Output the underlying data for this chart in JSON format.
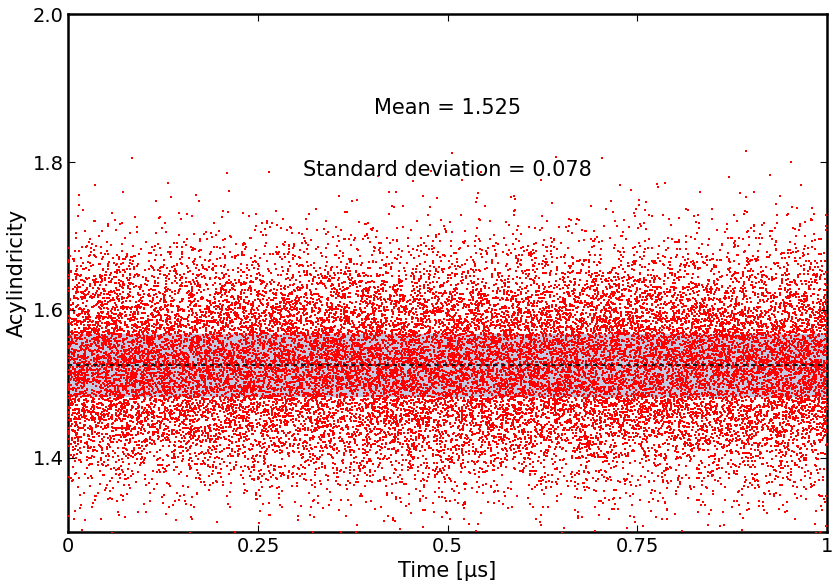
{
  "mean": 1.525,
  "std": 0.078,
  "xlim": [
    0,
    1
  ],
  "ylim": [
    1.3,
    2.0
  ],
  "xlabel": "Time [μs]",
  "ylabel": "Acylindricity",
  "xticks": [
    0,
    0.25,
    0.5,
    0.75,
    1
  ],
  "yticks": [
    1.4,
    1.6,
    1.8,
    2.0
  ],
  "n_points": 25000,
  "dot_color": "#ff0000",
  "dot_size": 2.5,
  "dot_alpha": 1.0,
  "band_color": "#b0b8d8",
  "band_alpha": 0.75,
  "band_half": 0.042,
  "dashed_line_color": "#111111",
  "annotation_mean": "Mean = 1.525",
  "annotation_std": "Standard deviation = 0.078",
  "annotation_fontsize": 15,
  "tick_labelsize": 14,
  "axis_labelsize": 15,
  "plot_bg_color": "#ffffff",
  "fig_bg_color": "none",
  "seed": 42
}
